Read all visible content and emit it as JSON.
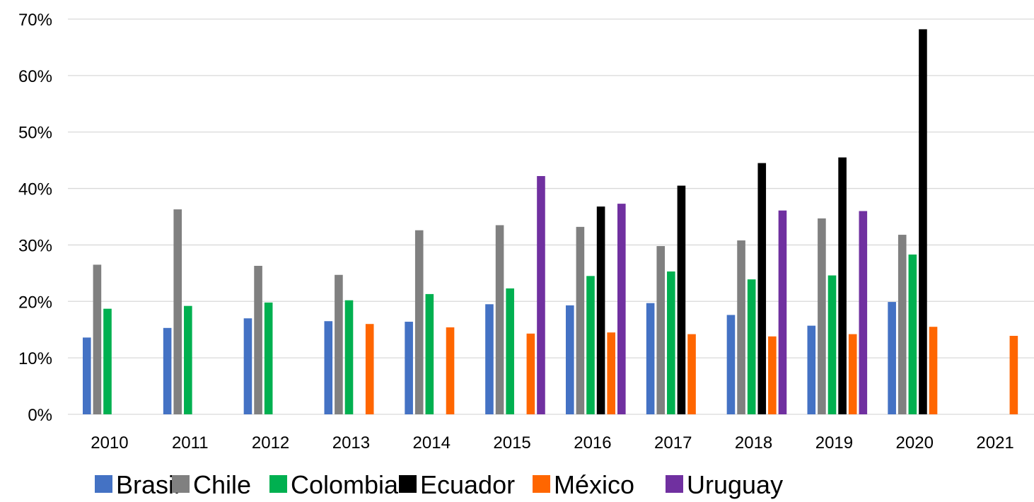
{
  "chart_data": {
    "type": "bar",
    "categories": [
      "2010",
      "2011",
      "2012",
      "2013",
      "2014",
      "2015",
      "2016",
      "2017",
      "2018",
      "2019",
      "2020",
      "2021"
    ],
    "y_ticks": [
      "0%",
      "10%",
      "20%",
      "30%",
      "40%",
      "50%",
      "60%",
      "70%"
    ],
    "ylim": [
      0,
      70
    ],
    "y_unit": "%",
    "grid": true,
    "legend_position": "bottom",
    "series": [
      {
        "name": "Brasil",
        "color": "#4472c4",
        "values": [
          13.6,
          15.3,
          17.0,
          16.5,
          16.4,
          19.5,
          19.3,
          19.7,
          17.6,
          15.7,
          19.9,
          null
        ]
      },
      {
        "name": "Chile",
        "color": "#808080",
        "values": [
          26.5,
          36.3,
          26.3,
          24.7,
          32.6,
          33.5,
          33.2,
          29.8,
          30.8,
          34.7,
          31.8,
          null
        ]
      },
      {
        "name": "Colombia",
        "color": "#00b050",
        "values": [
          18.7,
          19.2,
          19.8,
          20.2,
          21.3,
          22.3,
          24.5,
          25.3,
          23.9,
          24.6,
          28.3,
          null
        ]
      },
      {
        "name": "Ecuador",
        "color": "#000000",
        "values": [
          null,
          null,
          null,
          null,
          null,
          null,
          36.8,
          40.5,
          44.5,
          45.5,
          68.2,
          null
        ]
      },
      {
        "name": "México",
        "color": "#ff6600",
        "values": [
          null,
          null,
          null,
          16.0,
          15.4,
          14.3,
          14.5,
          14.2,
          13.8,
          14.2,
          15.5,
          13.9
        ]
      },
      {
        "name": "Uruguay",
        "color": "#7030a0",
        "values": [
          null,
          null,
          null,
          null,
          null,
          42.2,
          37.3,
          null,
          36.1,
          36.0,
          null,
          null
        ]
      }
    ]
  }
}
